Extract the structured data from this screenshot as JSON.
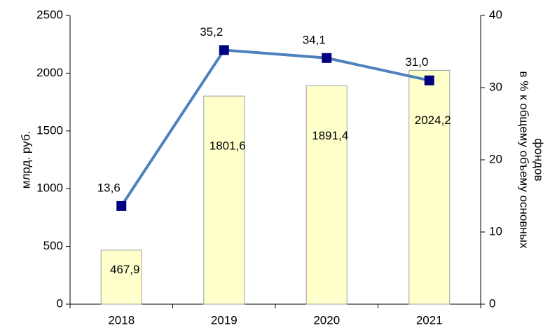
{
  "chart_data": {
    "type": "bar_line",
    "categories": [
      "2018",
      "2019",
      "2020",
      "2021"
    ],
    "series": [
      {
        "type": "bar",
        "color": "#ffffcc",
        "values": [
          467.9,
          1801.6,
          1891.4,
          2024.2
        ],
        "value_labels": [
          "467,9",
          "1801,6",
          "1891,4",
          "2024,2"
        ]
      },
      {
        "type": "line",
        "axis": "y2",
        "color": "#4f81bd",
        "marker_color": "#000080",
        "values": [
          13.6,
          35.2,
          34.1,
          31.0
        ],
        "value_labels": [
          "13,6",
          "35,2",
          "34,1",
          "31,0"
        ]
      }
    ],
    "y_label": "млрд. руб.",
    "y2_label": [
      "в % к общему объему основных",
      "фондов"
    ],
    "ylim": [
      0,
      2500
    ],
    "yticks": [
      0,
      500,
      1000,
      1500,
      2000,
      2500
    ],
    "y2lim": [
      0,
      40
    ],
    "y2ticks": [
      0,
      10,
      20,
      30,
      40
    ]
  }
}
